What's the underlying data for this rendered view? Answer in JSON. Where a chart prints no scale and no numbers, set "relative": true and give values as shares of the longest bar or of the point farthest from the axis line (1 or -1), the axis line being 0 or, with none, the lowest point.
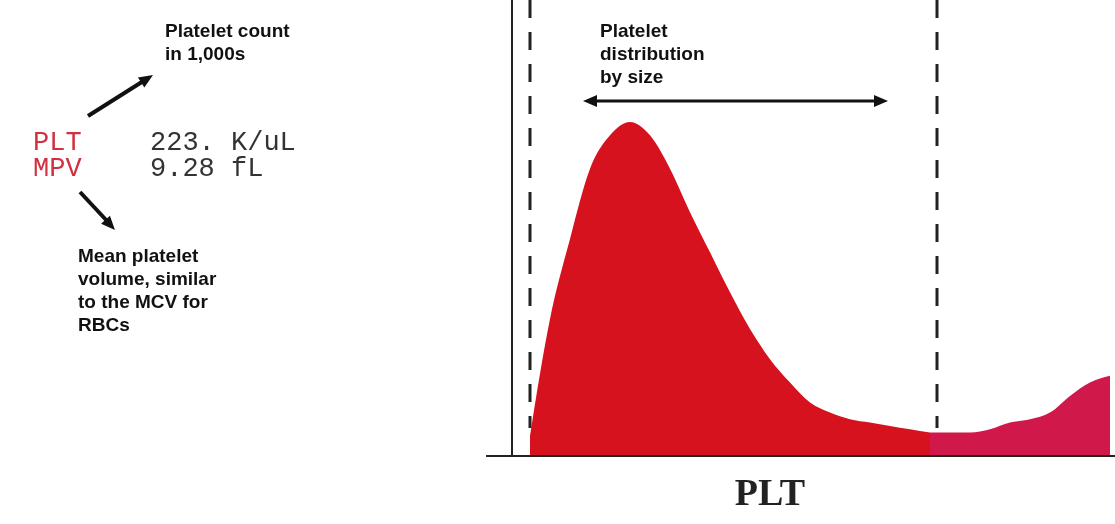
{
  "chart_data": {
    "type": "area",
    "relative": true,
    "xlabel": "PLT",
    "categories": [
      null,
      null,
      null,
      null,
      null,
      null,
      null,
      null,
      null,
      null,
      null,
      null,
      null,
      null,
      null,
      null,
      null,
      null,
      null,
      null,
      null,
      null,
      null,
      null,
      null,
      null,
      null,
      null,
      null,
      null
    ],
    "series": [
      {
        "color": "#d7121f",
        "values": [
          0.06,
          0.41,
          0.65,
          0.86,
          0.96,
          1,
          0.96,
          0.86,
          0.73,
          0.61,
          0.49,
          0.38,
          0.29,
          0.22,
          0.16,
          0.13,
          0.11,
          0.1,
          0.09,
          0.08,
          0.07,
          null,
          null,
          null,
          null,
          null,
          null,
          null,
          null,
          null
        ]
      },
      {
        "color": "#d0184a",
        "values": [
          null,
          null,
          null,
          null,
          null,
          null,
          null,
          null,
          null,
          null,
          null,
          null,
          null,
          null,
          null,
          null,
          null,
          null,
          null,
          null,
          0.07,
          0.07,
          0.07,
          0.08,
          0.1,
          0.11,
          0.13,
          0.18,
          0.22,
          0.24
        ]
      }
    ],
    "annotations": [
      "Platelet count in 1,000s",
      "PLT",
      "223. K/uL",
      "MPV",
      "9.28 fL",
      "Mean platelet volume, similar to the MCV for RBCs",
      "Platelet distribution by size"
    ]
  }
}
